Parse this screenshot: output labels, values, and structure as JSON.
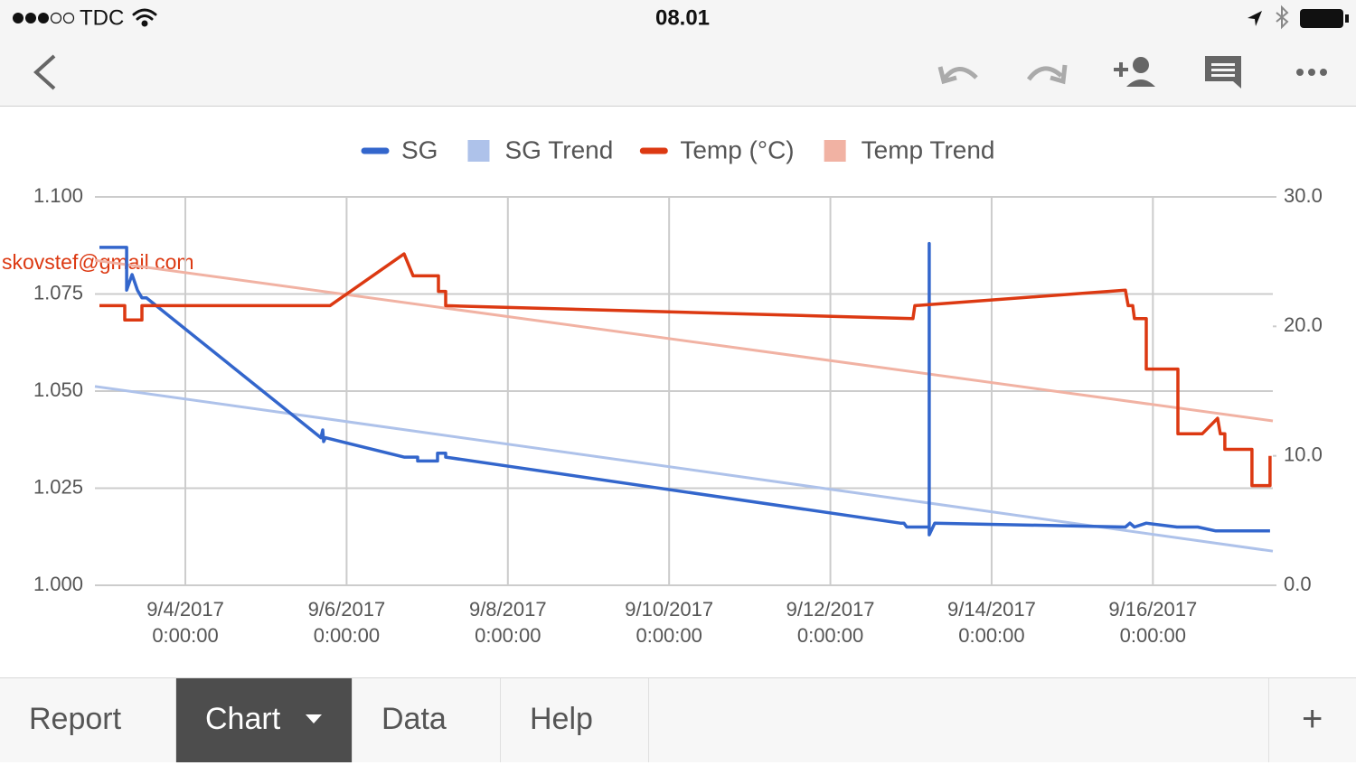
{
  "status_bar": {
    "carrier": "TDC",
    "time": "08.01"
  },
  "sheet_cell_text": "skovstef@gmail.com",
  "tabs": [
    "Report",
    "Chart",
    "Data",
    "Help"
  ],
  "selected_tab": 1,
  "chart_data": {
    "type": "line",
    "xlim": [
      "2017-09-02T21:05",
      "2017-09-17T11:42"
    ],
    "xticks": [
      {
        "value": "2017-09-04T00:00",
        "label": "9/4/2017 0:00:00"
      },
      {
        "value": "2017-09-06T00:00",
        "label": "9/6/2017 0:00:00"
      },
      {
        "value": "2017-09-08T00:00",
        "label": "9/8/2017 0:00:00"
      },
      {
        "value": "2017-09-10T00:00",
        "label": "9/10/2017 0:00:00"
      },
      {
        "value": "2017-09-12T00:00",
        "label": "9/12/2017 0:00:00"
      },
      {
        "value": "2017-09-14T00:00",
        "label": "9/14/2017 0:00:00"
      },
      {
        "value": "2017-09-16T00:00",
        "label": "9/16/2017 0:00:00"
      }
    ],
    "ylim": [
      1.0,
      1.1
    ],
    "yticks": [
      {
        "value": 1.0,
        "label": "1.000"
      },
      {
        "value": 1.025,
        "label": "1.025"
      },
      {
        "value": 1.05,
        "label": "1.050"
      },
      {
        "value": 1.075,
        "label": "1.075"
      },
      {
        "value": 1.1,
        "label": "1.100"
      }
    ],
    "y2lim": [
      0,
      30
    ],
    "y2ticks": [
      {
        "value": 0,
        "label": "0.0"
      },
      {
        "value": 10,
        "label": "10.0"
      },
      {
        "value": 20,
        "label": "20.0"
      },
      {
        "value": 30,
        "label": "30.0"
      }
    ],
    "grid": true,
    "legend": "top",
    "series": [
      {
        "name": "SG",
        "color": "#3366cc",
        "trend": false,
        "x": [
          "2017-09-02T22:26",
          "2017-09-03T06:31",
          "2017-09-03T06:31",
          "2017-09-03T08:08",
          "2017-09-03T09:44",
          "2017-09-03T11:05",
          "2017-09-03T12:26",
          "2017-09-05T16:22",
          "2017-09-05T16:54",
          "2017-09-05T17:10",
          "2017-09-05T17:42",
          "2017-09-06T17:07",
          "2017-09-06T21:09",
          "2017-09-06T21:09",
          "2017-09-07T03:04",
          "2017-09-07T03:04",
          "2017-09-07T05:29",
          "2017-09-07T05:29",
          "2017-09-12T20:50",
          "2017-09-12T21:54",
          "2017-09-12T22:43",
          "2017-09-13T05:26",
          "2017-09-13T05:26",
          "2017-09-13T05:26",
          "2017-09-13T07:03",
          "2017-09-15T15:49",
          "2017-09-15T17:10",
          "2017-09-15T18:31",
          "2017-09-15T22:01",
          "2017-09-16T07:10",
          "2017-09-16T13:21",
          "2017-09-16T18:44",
          "2017-09-17T10:52"
        ],
        "values": [
          1.087,
          1.087,
          1.076,
          1.08,
          1.076,
          1.074,
          1.074,
          1.038,
          1.04,
          1.037,
          1.038,
          1.033,
          1.033,
          1.032,
          1.032,
          1.034,
          1.034,
          1.033,
          1.016,
          1.016,
          1.015,
          1.015,
          1.088,
          1.013,
          1.016,
          1.015,
          1.016,
          1.015,
          1.016,
          1.015,
          1.015,
          1.014,
          1.014
        ]
      },
      {
        "name": "SG Trend",
        "color": "#aec2ea",
        "trend": true,
        "x": [
          "2017-09-02T21:05",
          "2017-09-17T11:42"
        ],
        "values": [
          1.0512,
          1.0088
        ]
      },
      {
        "name": "Temp (°C)",
        "color": "#dc3912",
        "trend": false,
        "axis": "y2",
        "x": [
          "2017-09-02T22:26",
          "2017-09-03T05:58",
          "2017-09-03T05:58",
          "2017-09-03T11:05",
          "2017-09-03T11:05",
          "2017-09-05T19:03",
          "2017-09-06T17:07",
          "2017-09-06T19:48",
          "2017-09-07T03:20",
          "2017-09-07T03:20",
          "2017-09-07T05:29",
          "2017-09-07T05:29",
          "2017-09-13T00:35",
          "2017-09-13T01:08",
          "2017-09-15T15:49",
          "2017-09-15T16:38",
          "2017-09-15T17:59",
          "2017-09-15T18:31",
          "2017-09-15T22:01",
          "2017-09-15T22:01",
          "2017-09-16T07:26",
          "2017-09-16T07:26",
          "2017-09-16T14:41",
          "2017-09-16T19:16",
          "2017-09-16T20:04",
          "2017-09-16T21:25",
          "2017-09-16T21:25",
          "2017-09-17T05:29",
          "2017-09-17T05:29",
          "2017-09-17T10:52",
          "2017-09-17T10:52"
        ],
        "values": [
          21.6,
          21.6,
          20.5,
          20.5,
          21.6,
          21.6,
          25.6,
          23.9,
          23.9,
          22.7,
          22.7,
          21.6,
          20.6,
          21.6,
          22.8,
          21.6,
          21.6,
          20.6,
          20.6,
          16.7,
          16.7,
          11.7,
          11.7,
          12.9,
          11.7,
          11.7,
          10.5,
          10.5,
          7.7,
          7.7,
          10.0
        ]
      },
      {
        "name": "Temp Trend",
        "color": "#f1b2a3",
        "trend": true,
        "axis": "y2",
        "x": [
          "2017-09-02T21:05",
          "2017-09-17T11:42"
        ],
        "values": [
          25.1,
          12.7
        ]
      }
    ]
  }
}
